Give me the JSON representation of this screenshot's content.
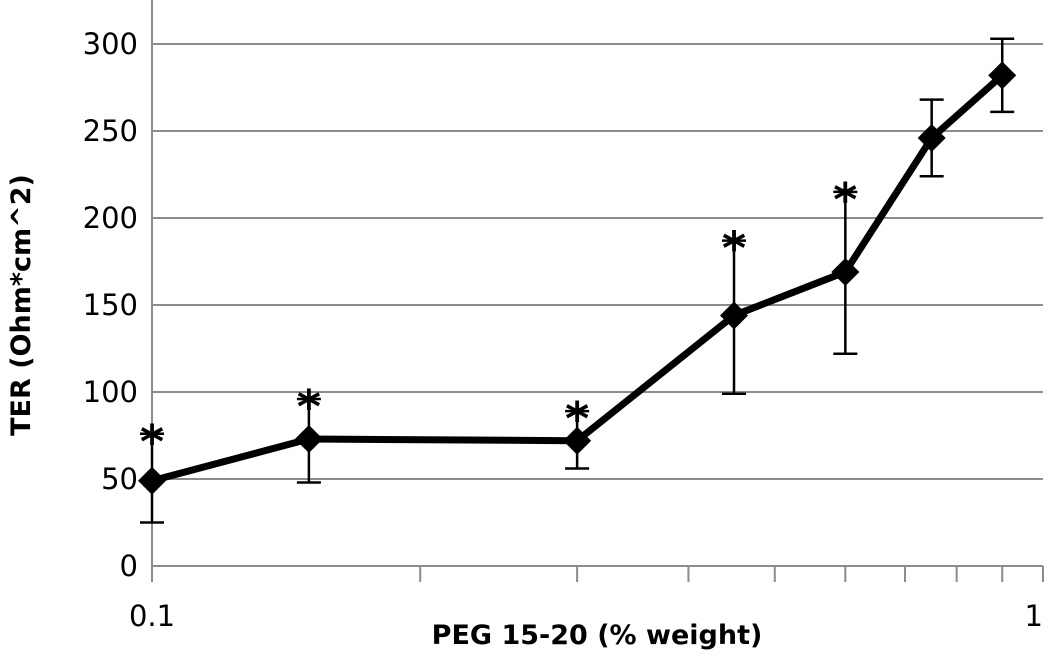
{
  "chart_data": {
    "type": "line",
    "xlabel": "PEG 15-20 (% weight)",
    "ylabel": "TER (Ohm*cm^2)",
    "x_scale": "log",
    "xlim": [
      0.1,
      1
    ],
    "ylim": [
      0,
      300
    ],
    "x_tick_labels": [
      "0.1",
      "1"
    ],
    "y_ticks": [
      0,
      50,
      100,
      150,
      200,
      250,
      300
    ],
    "grid": "horizontal",
    "legend": "none",
    "series": [
      {
        "x": [
          0.1,
          0.15,
          0.3,
          0.45,
          0.6,
          0.75,
          0.9
        ],
        "y": [
          49,
          73,
          72,
          144,
          169,
          246,
          282
        ],
        "err_low": [
          24,
          25,
          16,
          45,
          47,
          22,
          21
        ],
        "err_high": [
          27,
          23,
          17,
          43,
          46,
          22,
          21
        ],
        "marker": "diamond",
        "color": "#000000",
        "significant": [
          true,
          true,
          true,
          true,
          true,
          false,
          false
        ]
      }
    ],
    "annotation_symbol": "*"
  }
}
